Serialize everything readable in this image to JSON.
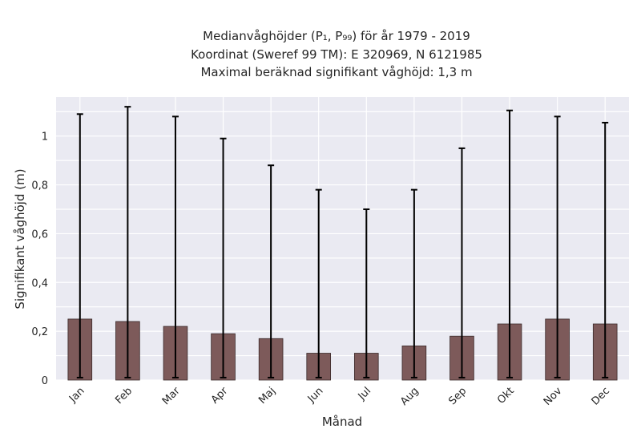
{
  "chart_data": {
    "type": "bar",
    "title_lines": [
      "Medianvåghöjder (P₁, P₉₉) för år 1979 - 2019",
      "Koordinat (Sweref 99 TM): E 320969, N 6121985",
      "Maximal beräknad signifikant våghöjd: 1,3 m"
    ],
    "xlabel": "Månad",
    "ylabel": "Signifikant våghöjd (m)",
    "categories": [
      "Jan",
      "Feb",
      "Mar",
      "Apr",
      "Maj",
      "Jun",
      "Jul",
      "Aug",
      "Sep",
      "Okt",
      "Nov",
      "Dec"
    ],
    "values": [
      0.25,
      0.24,
      0.22,
      0.19,
      0.17,
      0.11,
      0.11,
      0.14,
      0.18,
      0.23,
      0.25,
      0.23
    ],
    "error_low": [
      0.01,
      0.01,
      0.01,
      0.01,
      0.01,
      0.01,
      0.01,
      0.01,
      0.01,
      0.01,
      0.01,
      0.01
    ],
    "error_high": [
      1.09,
      1.12,
      1.08,
      0.99,
      0.88,
      0.78,
      0.7,
      0.78,
      0.95,
      1.105,
      1.08,
      1.055
    ],
    "yticks": [
      "0",
      "0,2",
      "0,4",
      "0,6",
      "0,8",
      "1"
    ],
    "ylim": [
      0,
      1.16
    ],
    "grid": true,
    "colors": {
      "bar": "#7d5a5a",
      "bar_edge": "#3a2a2a",
      "error": "#000000",
      "plot_bg": "#eaeaf2",
      "grid": "#ffffff"
    }
  }
}
